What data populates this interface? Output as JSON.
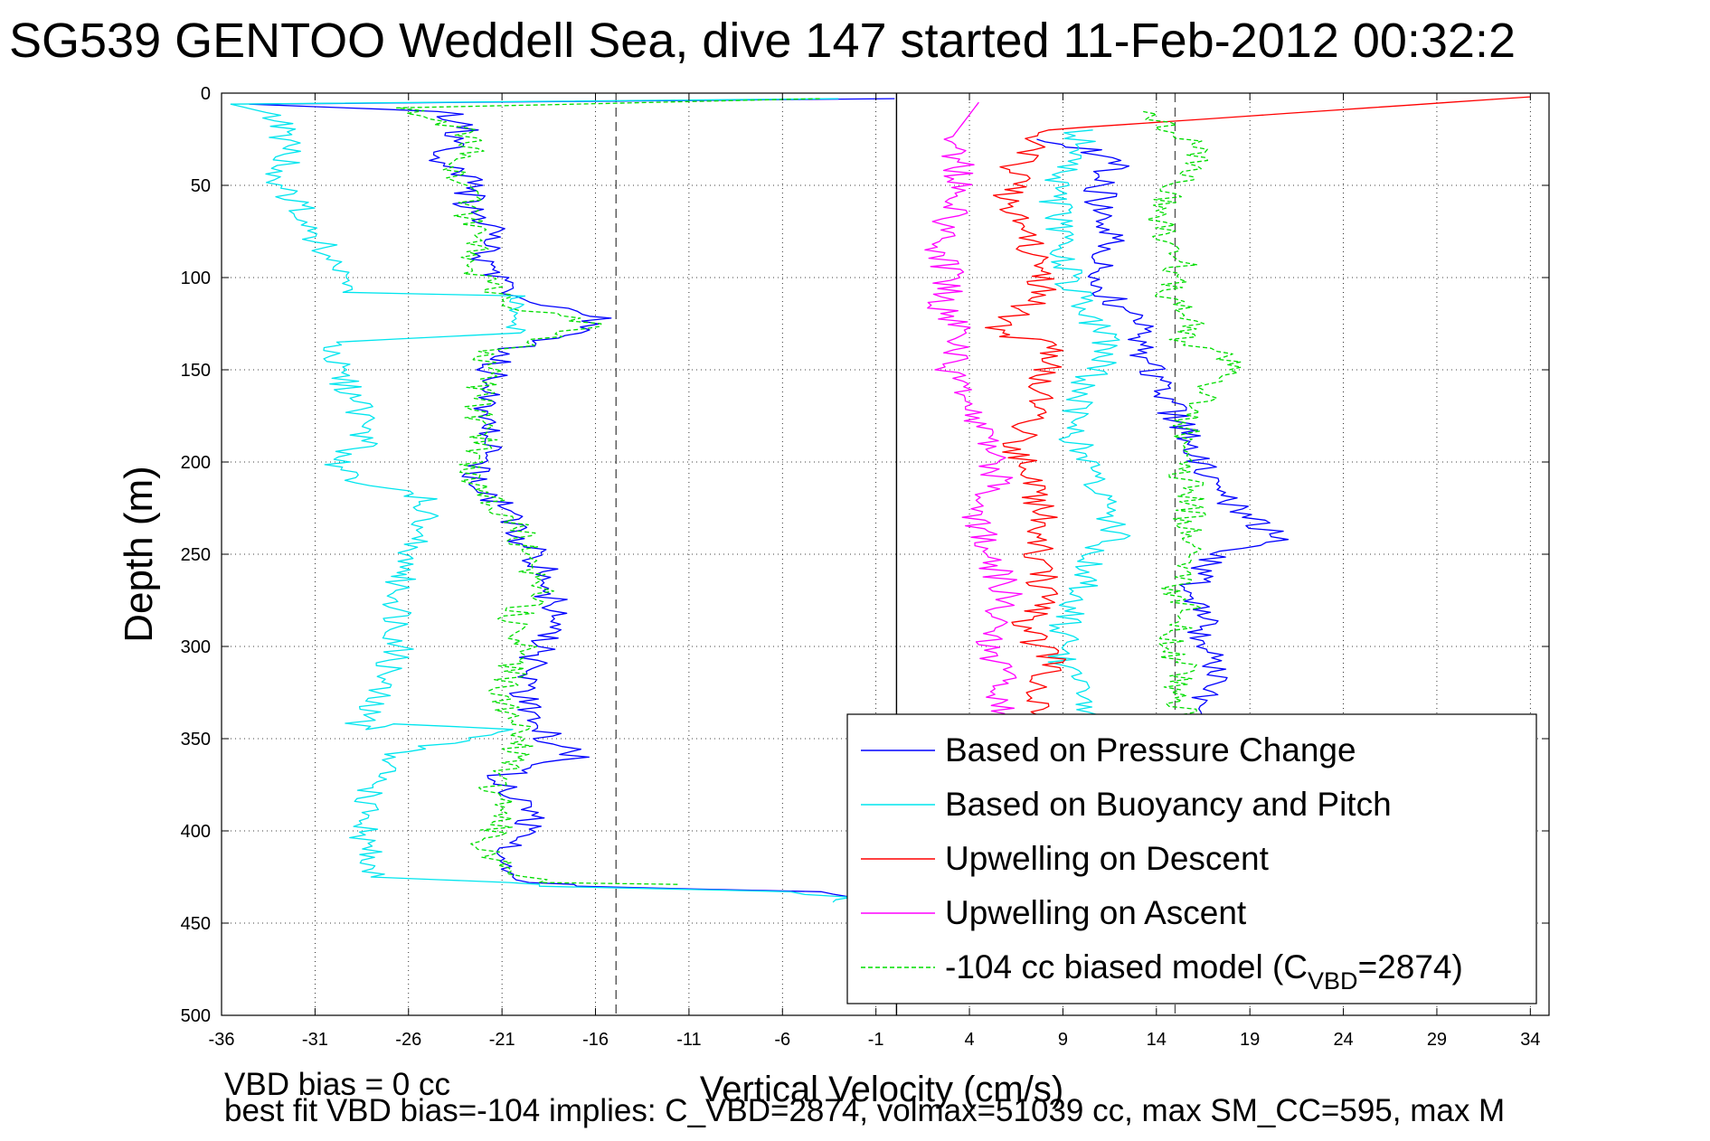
{
  "chart_data": {
    "type": "line",
    "title": "SG539 GENTOO Weddell Sea, dive 147 started 11-Feb-2012 00:32:2",
    "xlabel": "Vertical Velocity (cm/s)",
    "ylabel": "Depth (m)",
    "xlim": [
      -36,
      35
    ],
    "ylim": [
      500,
      0
    ],
    "y_reversed": true,
    "xticks": [
      -36,
      -31,
      -26,
      -21,
      -16,
      -11,
      -6,
      -1,
      4,
      9,
      14,
      19,
      24,
      29,
      34
    ],
    "yticks": [
      0,
      50,
      100,
      150,
      200,
      250,
      300,
      350,
      400,
      450,
      500
    ],
    "grid": true,
    "legend_position": "bottom-right",
    "vlines": [
      {
        "x": -14.9,
        "style": "dashed",
        "color": "#555555"
      },
      {
        "x": 0.1,
        "style": "solid",
        "color": "#000000"
      },
      {
        "x": 15.0,
        "style": "dashed",
        "color": "#555555"
      }
    ],
    "series": [
      {
        "name": "Based on Pressure Change",
        "color": "#0000ff",
        "style": "solid",
        "x": [
          0.0,
          -34.5,
          -24.0,
          -23.0,
          -24.5,
          -22.5,
          -23.0,
          -21.5,
          -22.0,
          -21.0,
          -20.5,
          -19.0,
          -17.0,
          -15.5,
          -17.5,
          -21.0,
          -21.5,
          -22.0,
          -21.5,
          -22.0,
          -22.5,
          -22.0,
          -21.0,
          -20.0,
          -19.0,
          -18.5,
          -18.0,
          -19.0,
          -19.5,
          -20.0,
          -19.0,
          -18.5,
          -17.0,
          -21.0,
          -19.5,
          -20.0,
          -21.5,
          -20.0,
          -19.0,
          -17.0,
          -4.5,
          -2.5,
          -3.5,
          8.0,
          12.0,
          11.0,
          11.0,
          11.5,
          11.0,
          11.5,
          13.0,
          13.0,
          13.5,
          14.5,
          15.0,
          16.0,
          17.0,
          20.5,
          17.0,
          16.0,
          16.5,
          16.5,
          17.5,
          15.5
        ],
        "y": [
          3,
          6,
          10,
          20,
          35,
          50,
          60,
          75,
          90,
          100,
          110,
          115,
          120,
          122,
          130,
          140,
          150,
          165,
          180,
          195,
          205,
          215,
          225,
          240,
          255,
          270,
          285,
          300,
          315,
          330,
          343,
          350,
          360,
          370,
          390,
          405,
          415,
          425,
          428,
          430,
          433,
          437,
          440,
          25,
          35,
          50,
          65,
          80,
          95,
          110,
          125,
          135,
          145,
          160,
          175,
          195,
          215,
          242,
          250,
          265,
          280,
          300,
          320,
          340
        ]
      },
      {
        "name": "Based on Buoyancy and Pitch",
        "color": "#00e5ee",
        "style": "solid",
        "x": [
          -3.0,
          -35.5,
          -33.0,
          -32.5,
          -33.0,
          -31.0,
          -30.5,
          -29.5,
          -29.5,
          -20.0,
          -20.0,
          -30.0,
          -30.0,
          -28.5,
          -28.5,
          -30.0,
          -29.5,
          -25.0,
          -25.5,
          -26.0,
          -26.5,
          -26.5,
          -28.5,
          -29.0,
          -27.0,
          -21.0,
          -27.0,
          -28.5,
          -28.0,
          -20.5,
          -19.0,
          -5.0,
          -3.0,
          -4.5,
          10.0,
          9.5,
          8.5,
          9.0,
          9.5,
          10.5,
          11.5,
          10.0,
          9.5,
          10.0,
          11.0,
          12.0,
          10.5,
          10.0,
          9.0,
          9.0,
          10.5,
          10.0
        ],
        "y": [
          3,
          6,
          12,
          30,
          50,
          70,
          90,
          100,
          108,
          110,
          130,
          135,
          150,
          170,
          190,
          200,
          207,
          220,
          240,
          260,
          262,
          300,
          340,
          345,
          342,
          345,
          360,
          390,
          425,
          428,
          430,
          433,
          436,
          440,
          20,
          40,
          50,
          90,
          105,
          120,
          140,
          160,
          180,
          200,
          220,
          240,
          248,
          270,
          290,
          310,
          330,
          340
        ]
      },
      {
        "name": "Upwelling on Descent",
        "color": "#ff0000",
        "style": "solid",
        "x": [
          34.0,
          8.0,
          6.5,
          6.0,
          7.0,
          8.0,
          7.5,
          8.0,
          6.5,
          5.0,
          6.0,
          9.0,
          8.0,
          7.5,
          6.5,
          7.0,
          8.0,
          7.5,
          8.0,
          7.0,
          8.5,
          7.5,
          8.0
        ],
        "y": [
          2,
          20,
          40,
          60,
          80,
          95,
          105,
          108,
          120,
          130,
          132,
          135,
          150,
          170,
          190,
          210,
          230,
          250,
          270,
          290,
          310,
          325,
          340
        ]
      },
      {
        "name": "Upwelling on Ascent",
        "color": "#ff00ff",
        "style": "solid",
        "x": [
          4.5,
          3.0,
          3.5,
          3.0,
          2.5,
          3.0,
          2.5,
          3.5,
          3.0,
          4.0,
          5.0,
          5.5,
          4.5,
          5.0,
          6.0,
          5.5,
          5.0,
          6.0,
          5.5,
          6.0
        ],
        "y": [
          5,
          25,
          45,
          65,
          85,
          100,
          115,
          130,
          150,
          170,
          190,
          210,
          230,
          250,
          270,
          290,
          305,
          320,
          335,
          345
        ]
      },
      {
        "name": "-104 cc biased model (C_VBD=2874)",
        "color": "#00dd00",
        "style": "dashed",
        "x": [
          -4.0,
          -26.0,
          -23.0,
          -22.5,
          -24.0,
          -22.5,
          -23.0,
          -22.0,
          -22.5,
          -21.5,
          -21.0,
          -19.5,
          -17.5,
          -16.0,
          -18.0,
          -21.5,
          -22.0,
          -22.5,
          -22.0,
          -22.5,
          -23.0,
          -22.5,
          -21.0,
          -20.0,
          -19.5,
          -19.0,
          -20.5,
          -20.0,
          -20.5,
          -21.0,
          -19.5,
          -20.5,
          -21.5,
          -21.0,
          -22.0,
          -20.5,
          -19.0,
          -4.0,
          13.0,
          15.0,
          16.5,
          15.0,
          14.0,
          15.5,
          14.5,
          16.0,
          15.5,
          17.5,
          18.0,
          16.0,
          15.0,
          16.0,
          15.5,
          16.0,
          15.0,
          16.0,
          15.0,
          14.5,
          15.5,
          15.0,
          16.0
        ],
        "y": [
          3,
          8,
          20,
          30,
          40,
          55,
          65,
          80,
          95,
          105,
          112,
          118,
          122,
          125,
          132,
          140,
          155,
          170,
          185,
          200,
          207,
          215,
          225,
          240,
          255,
          270,
          285,
          300,
          315,
          330,
          345,
          360,
          375,
          395,
          410,
          420,
          428,
          430,
          10,
          20,
          35,
          50,
          70,
          90,
          110,
          125,
          135,
          140,
          150,
          170,
          195,
          220,
          240,
          250,
          270,
          285,
          290,
          300,
          310,
          325,
          340
        ]
      }
    ]
  },
  "legend": {
    "entries": [
      {
        "label": "Based on Pressure Change"
      },
      {
        "label": "Based on Buoyancy and Pitch"
      },
      {
        "label": "Upwelling on Descent"
      },
      {
        "label": "Upwelling on Ascent"
      },
      {
        "label_main": "-104 cc biased model (C",
        "label_sub": "VBD",
        "label_tail": "=2874)"
      }
    ]
  },
  "notes": {
    "line1": "VBD bias = 0 cc",
    "line2": "best fit VBD bias=-104 implies: C_VBD=2874, volmax=51039 cc, max SM_CC=595, max M"
  }
}
